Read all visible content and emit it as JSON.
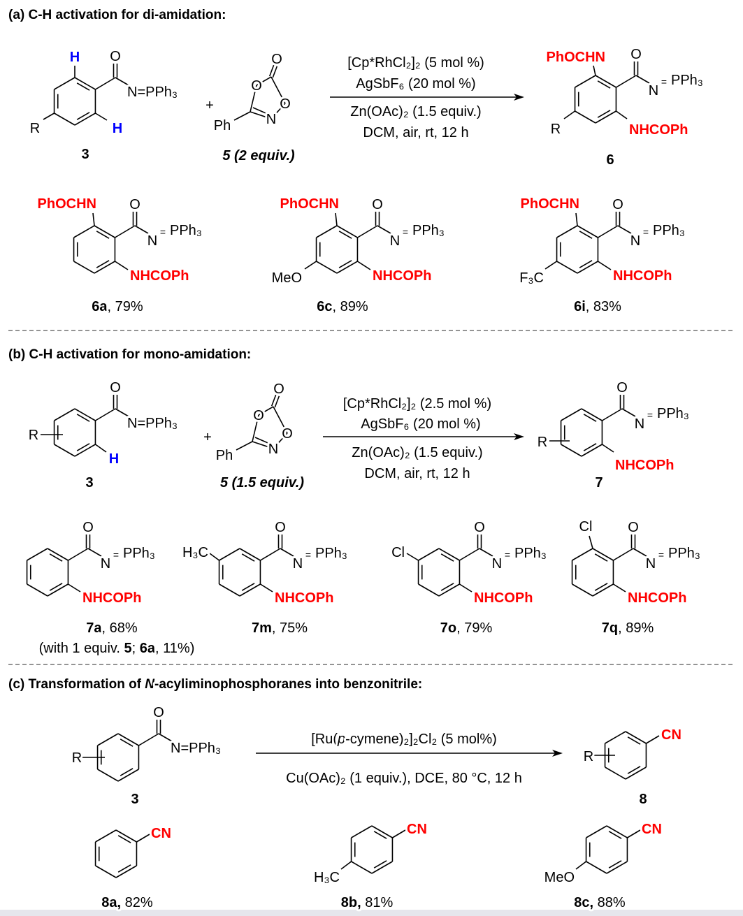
{
  "atoms": {
    "O": "O",
    "N": "N",
    "H": "H",
    "R": "R",
    "Ph": "Ph",
    "Cl": "Cl",
    "eq": "=",
    "PPh3": "PPh₃",
    "NPPh3": "N=PPh₃",
    "CN": "CN",
    "PhOCHN": "PhOCHN",
    "NHCOPh": "NHCOPh",
    "MeO": "MeO",
    "F3C": "F₃C",
    "H3C": "H₃C",
    "plus": "+"
  },
  "a": {
    "title": "(a) C-H activation for di-amidation:",
    "reactant_label": "3",
    "reagent_label": "5 (2 equiv.)",
    "conditions_above": [
      "[Cp*RhCl₂]₂ (5 mol %)",
      "AgSbF₆ (20 mol %)"
    ],
    "conditions_below": [
      "Zn(OAc)₂ (1.5 equiv.)",
      "DCM, air, rt, 12 h"
    ],
    "product_label": "6",
    "examples": [
      {
        "compound": "6a",
        "yield": ", 79%"
      },
      {
        "compound": "6c",
        "yield": ", 89%"
      },
      {
        "compound": "6i",
        "yield": ", 83%"
      }
    ]
  },
  "b": {
    "title": "(b) C-H activation for mono-amidation:",
    "reactant_label": "3",
    "reagent_label": "5 (1.5 equiv.)",
    "conditions_above": [
      "[Cp*RhCl₂]₂ (2.5 mol %)",
      "AgSbF₆ (20 mol %)"
    ],
    "conditions_below": [
      "Zn(OAc)₂  (1.5 equiv.)",
      "DCM, air, rt, 12 h"
    ],
    "product_label": "7",
    "examples": [
      {
        "compound": "7a",
        "yield": ", 68%"
      },
      {
        "compound": "7m",
        "yield": ", 75%"
      },
      {
        "compound": "7o",
        "yield": ", 79%"
      },
      {
        "compound": "7q",
        "yield": ", 89%"
      }
    ],
    "note": [
      "(with 1 equiv. ",
      "5",
      "; ",
      "6a",
      ", 11%)"
    ]
  },
  "c": {
    "title": [
      "(c) Transformation of ",
      "N",
      "-acyliminophosphoranes into benzonitrile:"
    ],
    "reactant_label": "3",
    "conditions_above": [
      "[Ru(",
      "p",
      "-cymene)₂]₂Cl₂ (5 mol%)"
    ],
    "conditions_below": "Cu(OAc)₂ (1 equiv.), DCE, 80 °C, 12 h",
    "product_label": "8",
    "examples": [
      {
        "compound": "8a,",
        "yield": " 82%"
      },
      {
        "compound": "8b,",
        "yield": " 81%"
      },
      {
        "compound": "8c,",
        "yield": " 88%"
      }
    ]
  },
  "colors": {
    "new_bond_group": "#ff0000",
    "activated_H": "#0000ff"
  }
}
